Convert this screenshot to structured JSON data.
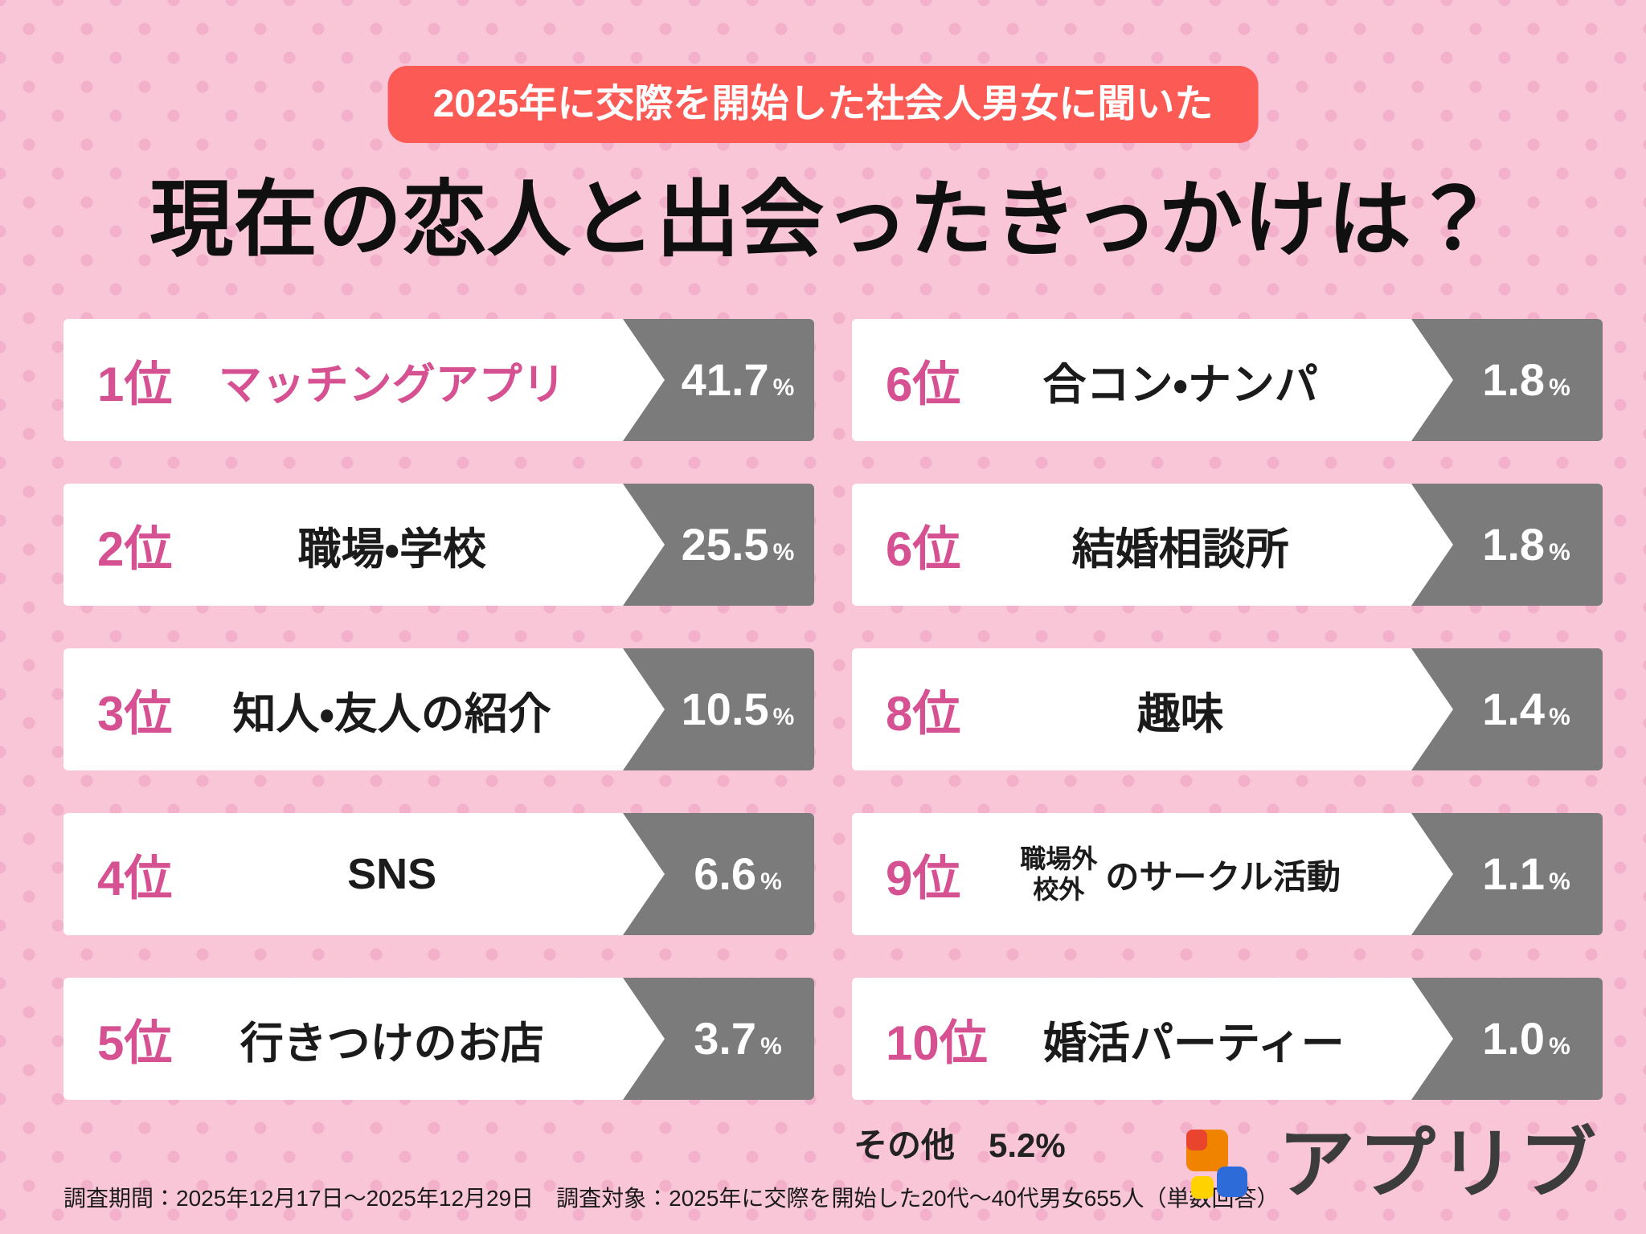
{
  "badge": {
    "text": "2025年に交際を開始した社会人男女に聞いた"
  },
  "title": "現在の恋人と出会ったきっかけは？",
  "ranking": {
    "unit": "%",
    "left": [
      {
        "rank": "1位",
        "label": "マッチングアプリ",
        "value": "41.7",
        "highlight": true
      },
      {
        "rank": "2位",
        "label": "職場・学校",
        "value": "25.5"
      },
      {
        "rank": "3位",
        "label": "知人・友人の紹介",
        "value": "10.5"
      },
      {
        "rank": "4位",
        "label": "SNS",
        "value": "6.6"
      },
      {
        "rank": "5位",
        "label": "行きつけのお店",
        "value": "3.7"
      }
    ],
    "right": [
      {
        "rank": "6位",
        "label": "合コン・ナンパ",
        "value": "1.8"
      },
      {
        "rank": "6位",
        "label": "結婚相談所",
        "value": "1.8"
      },
      {
        "rank": "8位",
        "label": "趣味",
        "value": "1.4"
      },
      {
        "rank": "9位",
        "label_stack": [
          "職場外",
          "校外"
        ],
        "label": "のサークル活動",
        "value": "1.1"
      },
      {
        "rank": "10位",
        "label": "婚活パーティー",
        "value": "1.0"
      }
    ]
  },
  "other_note": "その他　5.2%",
  "footnote": "調査期間：2025年12月17日～2025年12月29日　調査対象：2025年に交際を開始した20代～40代男女655人（単数回答）",
  "logo": {
    "text": "アプリブ"
  },
  "colors": {
    "background": "#f9c6d7",
    "badge": "#fb5a55",
    "rank_pink": "#d65191",
    "bar_gray": "#7b7b7b"
  },
  "chart_data": {
    "type": "bar",
    "title": "現在の恋人と出会ったきっかけは？",
    "subtitle": "2025年に交際を開始した社会人男女に聞いた",
    "categories": [
      "マッチングアプリ",
      "職場・学校",
      "知人・友人の紹介",
      "SNS",
      "行きつけのお店",
      "合コン・ナンパ",
      "結婚相談所",
      "趣味",
      "職場外・校外のサークル活動",
      "婚活パーティー",
      "その他"
    ],
    "values": [
      41.7,
      25.5,
      10.5,
      6.6,
      3.7,
      1.8,
      1.8,
      1.4,
      1.1,
      1.0,
      5.2
    ],
    "ranks": [
      "1位",
      "2位",
      "3位",
      "4位",
      "5位",
      "6位",
      "6位",
      "8位",
      "9位",
      "10位",
      ""
    ],
    "unit": "%",
    "source_note": "調査期間：2025年12月17日～2025年12月29日　調査対象：2025年に交際を開始した20代～40代男女655人（単数回答）"
  }
}
